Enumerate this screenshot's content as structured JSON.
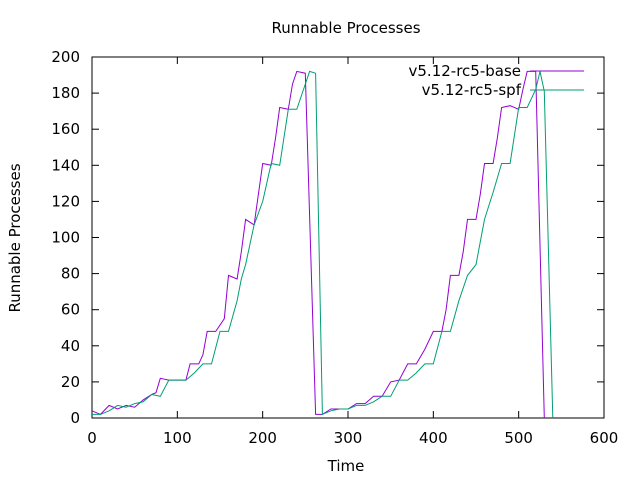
{
  "chart_data": {
    "type": "line",
    "title": "Runnable Processes",
    "xlabel": "Time",
    "ylabel": "Runnable Processes",
    "xlim": [
      0,
      600
    ],
    "ylim": [
      0,
      200
    ],
    "xticks": [
      0,
      100,
      200,
      300,
      400,
      500,
      600
    ],
    "yticks": [
      0,
      20,
      40,
      60,
      80,
      100,
      120,
      140,
      160,
      180,
      200
    ],
    "grid": false,
    "legend_position": "top-right",
    "series": [
      {
        "name": "v5.12-rc5-base",
        "color": "#9400d3",
        "points": [
          [
            0,
            4
          ],
          [
            10,
            2
          ],
          [
            20,
            7
          ],
          [
            30,
            5
          ],
          [
            40,
            7
          ],
          [
            50,
            6
          ],
          [
            60,
            10
          ],
          [
            70,
            13
          ],
          [
            75,
            14
          ],
          [
            80,
            22
          ],
          [
            90,
            21
          ],
          [
            100,
            21
          ],
          [
            110,
            21
          ],
          [
            115,
            30
          ],
          [
            125,
            30
          ],
          [
            130,
            35
          ],
          [
            135,
            48
          ],
          [
            145,
            48
          ],
          [
            155,
            55
          ],
          [
            160,
            79
          ],
          [
            170,
            77
          ],
          [
            175,
            92
          ],
          [
            180,
            110
          ],
          [
            190,
            107
          ],
          [
            195,
            124
          ],
          [
            200,
            141
          ],
          [
            210,
            140
          ],
          [
            215,
            155
          ],
          [
            220,
            172
          ],
          [
            230,
            171
          ],
          [
            235,
            185
          ],
          [
            240,
            192
          ],
          [
            250,
            191
          ],
          [
            262,
            2
          ],
          [
            270,
            2
          ],
          [
            280,
            5
          ],
          [
            290,
            5
          ],
          [
            300,
            5
          ],
          [
            310,
            8
          ],
          [
            320,
            8
          ],
          [
            330,
            12
          ],
          [
            340,
            12
          ],
          [
            350,
            20
          ],
          [
            360,
            21
          ],
          [
            370,
            30
          ],
          [
            380,
            30
          ],
          [
            390,
            38
          ],
          [
            400,
            48
          ],
          [
            410,
            48
          ],
          [
            415,
            60
          ],
          [
            420,
            79
          ],
          [
            430,
            79
          ],
          [
            435,
            92
          ],
          [
            440,
            110
          ],
          [
            450,
            110
          ],
          [
            455,
            124
          ],
          [
            460,
            141
          ],
          [
            470,
            141
          ],
          [
            475,
            155
          ],
          [
            480,
            172
          ],
          [
            490,
            173
          ],
          [
            500,
            171
          ],
          [
            505,
            182
          ],
          [
            510,
            192
          ],
          [
            520,
            192
          ],
          [
            530,
            0
          ]
        ],
        "legend_line_extends_to": 575
      },
      {
        "name": "v5.12-rc5-spf",
        "color": "#009e73",
        "points": [
          [
            0,
            2
          ],
          [
            10,
            2
          ],
          [
            20,
            4
          ],
          [
            30,
            7
          ],
          [
            40,
            6
          ],
          [
            50,
            8
          ],
          [
            60,
            9
          ],
          [
            70,
            13
          ],
          [
            80,
            12
          ],
          [
            90,
            21
          ],
          [
            100,
            21
          ],
          [
            110,
            21
          ],
          [
            120,
            25
          ],
          [
            130,
            30
          ],
          [
            140,
            30
          ],
          [
            150,
            48
          ],
          [
            160,
            48
          ],
          [
            170,
            65
          ],
          [
            175,
            77
          ],
          [
            180,
            85
          ],
          [
            190,
            107
          ],
          [
            200,
            120
          ],
          [
            210,
            141
          ],
          [
            220,
            140
          ],
          [
            230,
            171
          ],
          [
            240,
            171
          ],
          [
            250,
            185
          ],
          [
            255,
            192
          ],
          [
            262,
            191
          ],
          [
            270,
            2
          ],
          [
            280,
            4
          ],
          [
            290,
            5
          ],
          [
            300,
            5
          ],
          [
            310,
            7
          ],
          [
            320,
            7
          ],
          [
            330,
            9
          ],
          [
            340,
            12
          ],
          [
            350,
            12
          ],
          [
            360,
            21
          ],
          [
            370,
            21
          ],
          [
            380,
            25
          ],
          [
            390,
            30
          ],
          [
            400,
            30
          ],
          [
            410,
            48
          ],
          [
            420,
            48
          ],
          [
            430,
            65
          ],
          [
            440,
            79
          ],
          [
            450,
            85
          ],
          [
            460,
            110
          ],
          [
            470,
            125
          ],
          [
            480,
            141
          ],
          [
            490,
            141
          ],
          [
            500,
            172
          ],
          [
            510,
            172
          ],
          [
            520,
            182
          ],
          [
            525,
            192
          ],
          [
            530,
            181
          ],
          [
            540,
            0
          ]
        ],
        "legend_line_extends_to": 575
      }
    ]
  }
}
